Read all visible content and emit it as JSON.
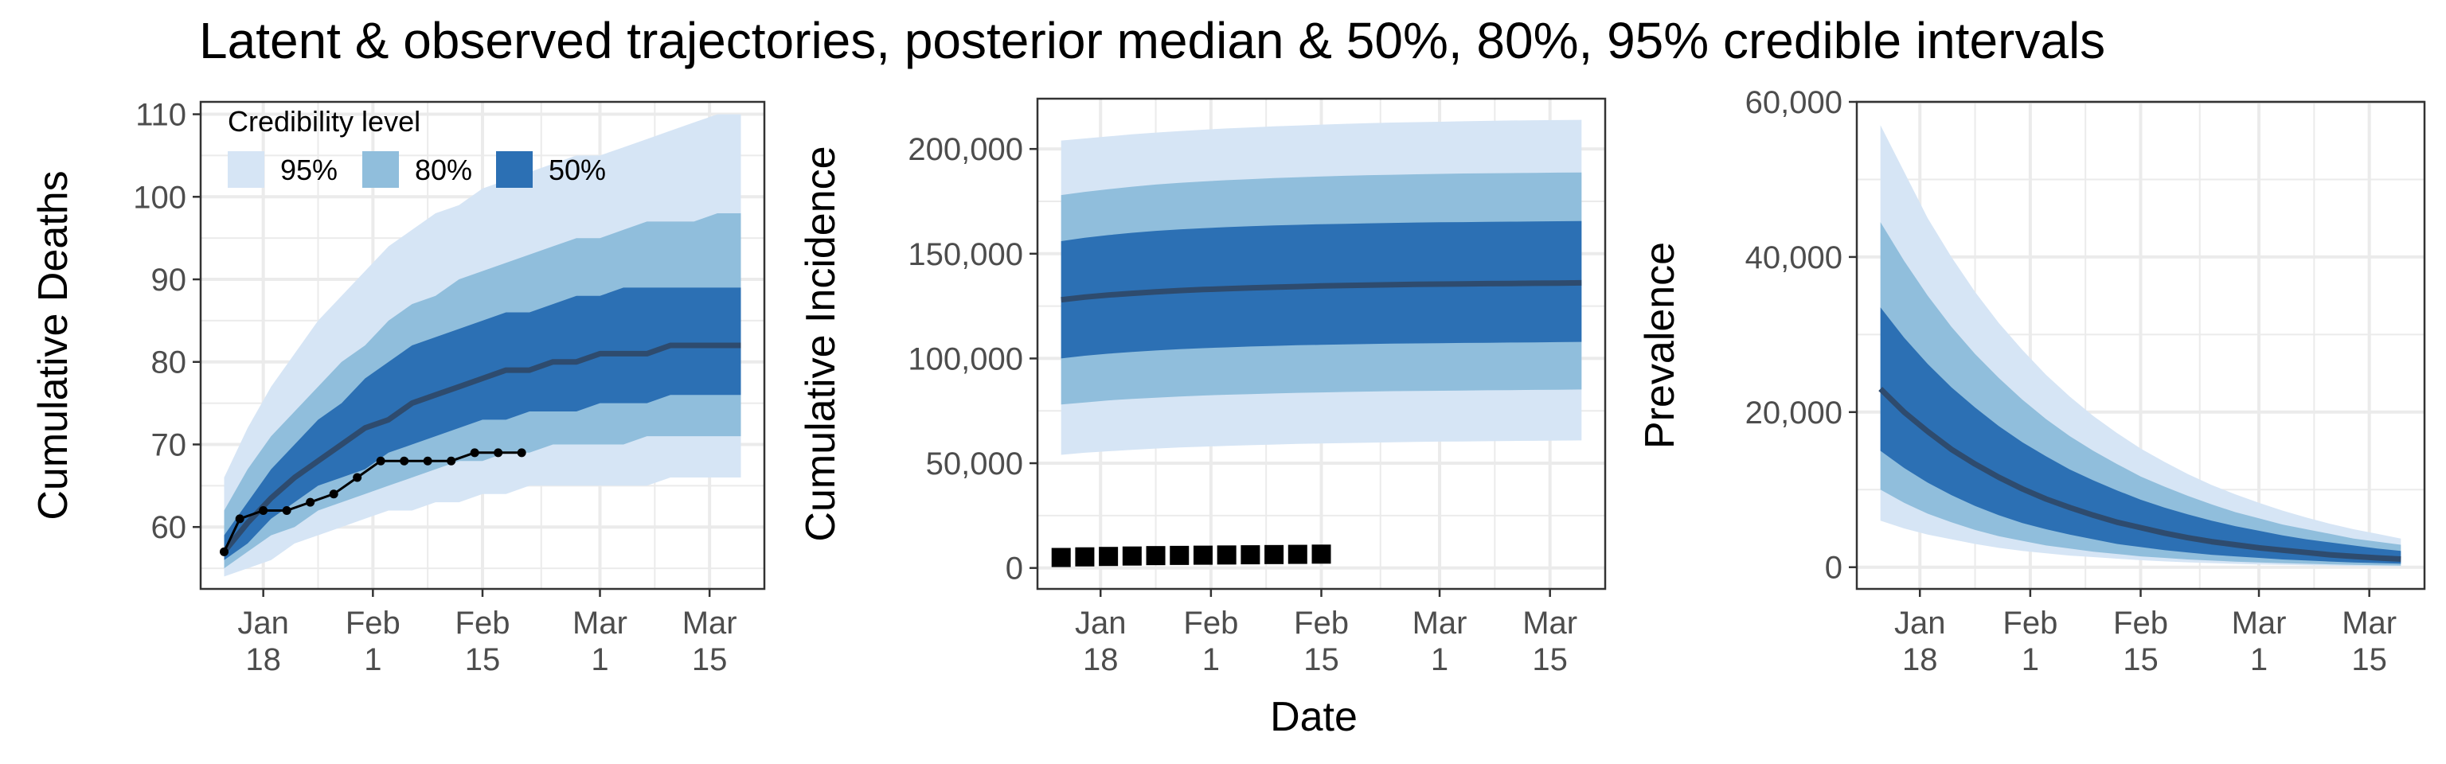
{
  "title": "Latent & observed trajectories, posterior median & 50%, 80%, 95% credible intervals",
  "legend": {
    "title": "Credibility level",
    "entries": [
      {
        "label": "95%",
        "color": "#d6e5f5"
      },
      {
        "label": "80%",
        "color": "#90bedc"
      },
      {
        "label": "50%",
        "color": "#2c70b4"
      }
    ]
  },
  "colors": {
    "median_line": "#2e4b6e",
    "observed": "#000000",
    "grid": "#ebebeb",
    "panel_border": "#333333",
    "tick_text": "#4d4d4d"
  },
  "x_axis_title": "Date",
  "x_ticks": [
    "Jan 18",
    "Feb 1",
    "Feb 15",
    "Mar 1",
    "Mar 15"
  ],
  "chart_data": [
    {
      "type": "area",
      "ylabel": "Cumulative Deaths",
      "xlabel": "",
      "x": [
        "2020-01-13",
        "2020-01-16",
        "2020-01-19",
        "2020-01-22",
        "2020-01-25",
        "2020-01-28",
        "2020-01-31",
        "2020-02-03",
        "2020-02-06",
        "2020-02-09",
        "2020-02-12",
        "2020-02-15",
        "2020-02-18",
        "2020-02-21",
        "2020-02-24",
        "2020-02-27",
        "2020-03-01",
        "2020-03-04",
        "2020-03-07",
        "2020-03-10",
        "2020-03-13",
        "2020-03-16",
        "2020-03-19"
      ],
      "ylim": [
        52.5,
        111.5
      ],
      "y_ticks": [
        60,
        70,
        80,
        90,
        100,
        110
      ],
      "x_ticks": [
        "Jan 18",
        "Feb 1",
        "Feb 15",
        "Mar 1",
        "Mar 15"
      ],
      "series": [
        {
          "name": "95%",
          "lower": [
            54,
            55,
            56,
            58,
            59,
            60,
            61,
            62,
            62,
            63,
            63,
            64,
            64,
            65,
            65,
            65,
            65,
            65,
            65,
            66,
            66,
            66,
            66
          ],
          "upper": [
            66,
            72,
            77,
            81,
            85,
            88,
            91,
            94,
            96,
            98,
            99,
            101,
            102,
            103,
            104,
            105,
            105,
            106,
            107,
            108,
            109,
            110,
            110
          ]
        },
        {
          "name": "80%",
          "lower": [
            55,
            57,
            59,
            60,
            62,
            63,
            64,
            65,
            66,
            67,
            68,
            68,
            69,
            69,
            70,
            70,
            70,
            70,
            71,
            71,
            71,
            71,
            71
          ],
          "upper": [
            62,
            67,
            71,
            74,
            77,
            80,
            82,
            85,
            87,
            88,
            90,
            91,
            92,
            93,
            94,
            95,
            95,
            96,
            97,
            97,
            97,
            98,
            98
          ]
        },
        {
          "name": "50%",
          "lower": [
            56,
            58,
            61,
            63,
            65,
            66,
            67,
            69,
            70,
            71,
            72,
            73,
            73,
            74,
            74,
            74,
            75,
            75,
            75,
            76,
            76,
            76,
            76
          ],
          "upper": [
            59,
            63,
            67,
            70,
            73,
            75,
            78,
            80,
            82,
            83,
            84,
            85,
            86,
            86,
            87,
            88,
            88,
            89,
            89,
            89,
            89,
            89,
            89
          ]
        },
        {
          "name": "median",
          "values": [
            57,
            60.5,
            63.5,
            66,
            68,
            70,
            72,
            73,
            75,
            76,
            77,
            78,
            79,
            79,
            80,
            80,
            81,
            81,
            81,
            82,
            82,
            82,
            82
          ]
        },
        {
          "name": "observed",
          "x": [
            "2020-01-13",
            "2020-01-15",
            "2020-01-18",
            "2020-01-21",
            "2020-01-24",
            "2020-01-27",
            "2020-01-30",
            "2020-02-02",
            "2020-02-05",
            "2020-02-08",
            "2020-02-11",
            "2020-02-14",
            "2020-02-17",
            "2020-02-20"
          ],
          "values": [
            57,
            61,
            62,
            62,
            63,
            64,
            66,
            68,
            68,
            68,
            68,
            69,
            69,
            69
          ]
        }
      ]
    },
    {
      "type": "area",
      "ylabel": "Cumulative Incidence",
      "xlabel": "Date",
      "x": [
        "2020-01-13",
        "2020-01-16",
        "2020-01-19",
        "2020-01-22",
        "2020-01-25",
        "2020-01-28",
        "2020-01-31",
        "2020-02-03",
        "2020-02-06",
        "2020-02-09",
        "2020-02-12",
        "2020-02-15",
        "2020-02-18",
        "2020-02-21",
        "2020-02-24",
        "2020-02-27",
        "2020-03-01",
        "2020-03-04",
        "2020-03-07",
        "2020-03-10",
        "2020-03-13",
        "2020-03-16",
        "2020-03-19"
      ],
      "ylim": [
        -10000,
        224000
      ],
      "y_ticks": [
        0,
        50000,
        100000,
        150000,
        200000
      ],
      "x_ticks": [
        "Jan 18",
        "Feb 1",
        "Feb 15",
        "Mar 1",
        "Mar 15"
      ],
      "series": [
        {
          "name": "95%",
          "lower": [
            54000,
            55000,
            55700,
            56400,
            57000,
            57500,
            57900,
            58300,
            58600,
            58900,
            59200,
            59400,
            59600,
            59800,
            60000,
            60200,
            60300,
            60400,
            60500,
            60600,
            60700,
            60800,
            60900
          ],
          "upper": [
            204000,
            205000,
            206000,
            207000,
            207800,
            208500,
            209200,
            209800,
            210300,
            210800,
            211200,
            211600,
            212000,
            212300,
            212600,
            212800,
            213000,
            213200,
            213400,
            213600,
            213700,
            213800,
            213900
          ]
        },
        {
          "name": "80%",
          "lower": [
            78000,
            79000,
            80000,
            80700,
            81300,
            81800,
            82300,
            82700,
            83000,
            83300,
            83600,
            83800,
            84000,
            84200,
            84400,
            84500,
            84600,
            84700,
            84800,
            84900,
            85000,
            85100,
            85200
          ]
        },
        {
          "name": "80% upper",
          "upper": [
            178000,
            179500,
            180800,
            182000,
            183000,
            183800,
            184500,
            185100,
            185600,
            186100,
            186500,
            186900,
            187200,
            187500,
            187700,
            187900,
            188100,
            188300,
            188400,
            188500,
            188600,
            188700,
            188800
          ]
        },
        {
          "name": "50%",
          "lower": [
            100000,
            101300,
            102300,
            103100,
            103800,
            104400,
            104900,
            105300,
            105700,
            106000,
            106300,
            106500,
            106700,
            106900,
            107100,
            107200,
            107300,
            107400,
            107500,
            107600,
            107700,
            107800,
            107900
          ],
          "upper": [
            156000,
            157600,
            158900,
            160000,
            160900,
            161600,
            162200,
            162700,
            163100,
            163500,
            163800,
            164100,
            164300,
            164500,
            164700,
            164900,
            165000,
            165100,
            165200,
            165300,
            165400,
            165500,
            165600
          ]
        },
        {
          "name": "median",
          "values": [
            128000,
            129300,
            130300,
            131100,
            131800,
            132400,
            132900,
            133300,
            133700,
            134000,
            134300,
            134600,
            134800,
            135000,
            135200,
            135400,
            135500,
            135600,
            135700,
            135800,
            135900,
            136000,
            136100
          ]
        },
        {
          "name": "observed",
          "x": [
            "2020-01-13",
            "2020-01-16",
            "2020-01-19",
            "2020-01-22",
            "2020-01-25",
            "2020-01-28",
            "2020-01-31",
            "2020-02-03",
            "2020-02-06",
            "2020-02-09",
            "2020-02-12",
            "2020-02-15"
          ],
          "values": [
            5000,
            5300,
            5500,
            5700,
            5900,
            6000,
            6100,
            6200,
            6300,
            6400,
            6500,
            6600
          ]
        }
      ]
    },
    {
      "type": "area",
      "ylabel": "Prevalence",
      "xlabel": "",
      "x": [
        "2020-01-13",
        "2020-01-16",
        "2020-01-19",
        "2020-01-22",
        "2020-01-25",
        "2020-01-28",
        "2020-01-31",
        "2020-02-03",
        "2020-02-06",
        "2020-02-09",
        "2020-02-12",
        "2020-02-15",
        "2020-02-18",
        "2020-02-21",
        "2020-02-24",
        "2020-02-27",
        "2020-03-01",
        "2020-03-04",
        "2020-03-07",
        "2020-03-10",
        "2020-03-13",
        "2020-03-16",
        "2020-03-19"
      ],
      "ylim": [
        -2800,
        60000
      ],
      "y_ticks": [
        0,
        20000,
        40000,
        60000
      ],
      "x_ticks": [
        "Jan 18",
        "Feb 1",
        "Feb 15",
        "Mar 1",
        "Mar 15"
      ],
      "series": [
        {
          "name": "95%",
          "lower": [
            6000,
            5000,
            4200,
            3600,
            3000,
            2500,
            2100,
            1800,
            1500,
            1300,
            1100,
            900,
            750,
            630,
            520,
            430,
            360,
            300,
            250,
            210,
            170,
            140,
            120
          ],
          "upper": [
            57000,
            51000,
            45000,
            40000,
            35500,
            31500,
            28000,
            24800,
            22000,
            19500,
            17300,
            15300,
            13600,
            12000,
            10600,
            9400,
            8300,
            7300,
            6400,
            5600,
            4900,
            4300,
            3700
          ]
        },
        {
          "name": "80%",
          "lower": [
            10000,
            8300,
            6900,
            5800,
            4800,
            4000,
            3400,
            2800,
            2400,
            2000,
            1700,
            1400,
            1200,
            1000,
            850,
            720,
            610,
            520,
            440,
            370,
            310,
            260,
            220
          ],
          "upper": [
            44500,
            39500,
            35000,
            31000,
            27500,
            24400,
            21600,
            19100,
            16900,
            15000,
            13300,
            11700,
            10400,
            9200,
            8100,
            7100,
            6300,
            5500,
            4900,
            4300,
            3700,
            3300,
            2900
          ]
        },
        {
          "name": "50%",
          "lower": [
            15000,
            12800,
            10900,
            9300,
            7900,
            6700,
            5700,
            4900,
            4200,
            3600,
            3000,
            2600,
            2200,
            1900,
            1600,
            1400,
            1200,
            1000,
            860,
            730,
            620,
            530,
            450
          ],
          "upper": [
            33500,
            29600,
            26200,
            23200,
            20600,
            18200,
            16100,
            14300,
            12600,
            11200,
            9900,
            8700,
            7700,
            6800,
            6000,
            5300,
            4700,
            4100,
            3600,
            3200,
            2800,
            2400,
            2100
          ]
        },
        {
          "name": "median",
          "values": [
            23000,
            20000,
            17500,
            15200,
            13300,
            11600,
            10100,
            8800,
            7700,
            6700,
            5800,
            5100,
            4400,
            3800,
            3300,
            2900,
            2500,
            2200,
            1900,
            1600,
            1400,
            1200,
            1050
          ]
        }
      ]
    }
  ]
}
